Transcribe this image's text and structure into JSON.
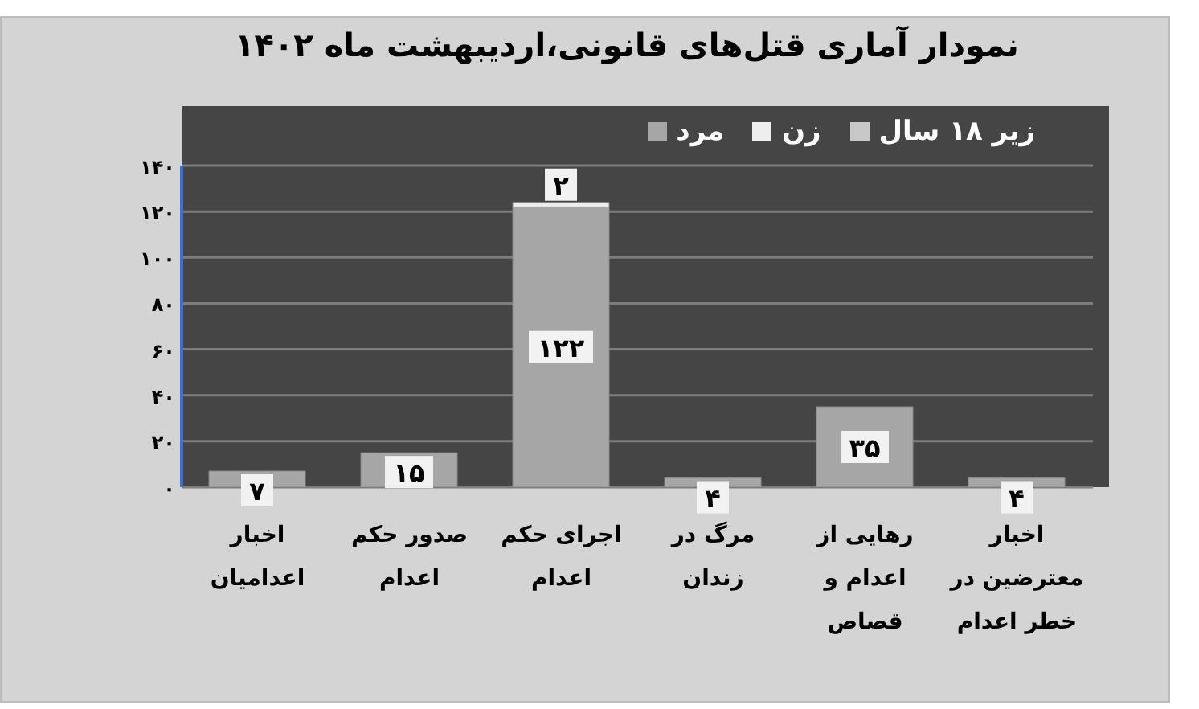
{
  "chart_data": {
    "type": "bar",
    "title": "نمودار آماری قتل‌های قانونی،اردیبهشت ماه ۱۴۰۲",
    "categories": [
      "اخبار اعدامیان",
      "صدور حکم اعدام",
      "اجرای حکم اعدام",
      "مرگ در زندان",
      "رهایی از اعدام و قصاص",
      "اخبار معترضین در خطر اعدام"
    ],
    "stacked": true,
    "series": [
      {
        "name": "مرد",
        "color": "#a6a6a6",
        "values": [
          7,
          15,
          122,
          4,
          35,
          4
        ],
        "value_labels": [
          "۷",
          "۱۵",
          "۱۲۲",
          "۴",
          "۳۵",
          "۴"
        ]
      },
      {
        "name": "زن",
        "color": "#eeeeee",
        "values": [
          0,
          0,
          2,
          0,
          0,
          0
        ],
        "value_labels": [
          null,
          null,
          "۲",
          null,
          null,
          null
        ]
      },
      {
        "name": "زیر ۱۸ سال",
        "color": "#c8c8c8",
        "values": [
          0,
          0,
          0,
          0,
          0,
          0
        ]
      }
    ],
    "ylim": [
      0,
      140
    ],
    "yticks": [
      {
        "value": 0,
        "label": "۰"
      },
      {
        "value": 20,
        "label": "۲۰"
      },
      {
        "value": 40,
        "label": "۴۰"
      },
      {
        "value": 60,
        "label": "۶۰"
      },
      {
        "value": 80,
        "label": "۸۰"
      },
      {
        "value": 100,
        "label": "۱۰۰"
      },
      {
        "value": 120,
        "label": "۱۲۰"
      },
      {
        "value": 140,
        "label": "۱۴۰"
      }
    ],
    "grid": "y",
    "legend": "top right"
  }
}
